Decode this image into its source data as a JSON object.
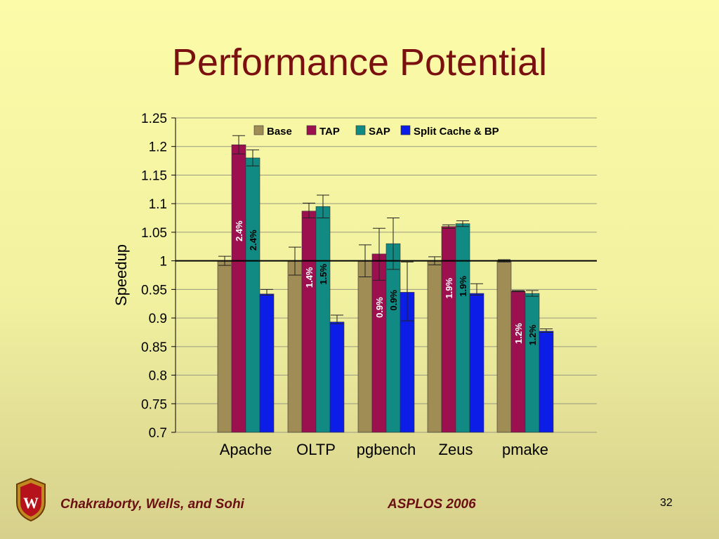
{
  "slide": {
    "title": "Performance Potential",
    "footer_authors": "Chakraborty, Wells, and Sohi",
    "footer_conference": "ASPLOS 2006",
    "page_number": "32"
  },
  "colors": {
    "title": "#7a1010",
    "base": "#a08d55",
    "tap": "#9c1050",
    "sap": "#118a83",
    "split": "#0b1de6"
  },
  "chart_data": {
    "type": "bar",
    "ylabel": "Speedup",
    "xlabel": "",
    "ylim": [
      0.7,
      1.25
    ],
    "yticks": [
      "0.7",
      "0.75",
      "0.8",
      "0.85",
      "0.9",
      "0.95",
      "1",
      "1.05",
      "1.1",
      "1.15",
      "1.2",
      "1.25"
    ],
    "grid": true,
    "legend_position": "top",
    "reference_line": 1,
    "categories": [
      "Apache",
      "OLTP",
      "pgbench",
      "Zeus",
      "pmake"
    ],
    "series": [
      {
        "name": "Base",
        "color": "#a08d55",
        "values": [
          1.0,
          1.0,
          1.0,
          1.0,
          1.0
        ],
        "error_low": [
          0.992,
          0.975,
          0.972,
          0.993,
          0.998
        ],
        "error_high": [
          1.008,
          1.024,
          1.028,
          1.007,
          1.002
        ]
      },
      {
        "name": "TAP",
        "color": "#9c1050",
        "values": [
          1.203,
          1.087,
          1.012,
          1.06,
          0.947
        ],
        "error_low": [
          1.187,
          1.075,
          0.966,
          1.057,
          0.946
        ],
        "error_high": [
          1.219,
          1.101,
          1.057,
          1.063,
          0.948
        ]
      },
      {
        "name": "SAP",
        "color": "#118a83",
        "values": [
          1.18,
          1.095,
          1.03,
          1.065,
          0.943
        ],
        "error_low": [
          1.166,
          1.075,
          0.985,
          1.06,
          0.938
        ],
        "error_high": [
          1.194,
          1.115,
          1.075,
          1.07,
          0.948
        ]
      },
      {
        "name": "Split Cache & BP",
        "color": "#0b1de6",
        "values": [
          0.942,
          0.893,
          0.945,
          0.943,
          0.877
        ],
        "error_low": [
          0.94,
          0.89,
          0.895,
          0.94,
          0.875
        ],
        "error_high": [
          0.95,
          0.905,
          0.998,
          0.96,
          0.881
        ]
      }
    ],
    "annotations": [
      {
        "category": "Apache",
        "series": "TAP",
        "text": "2.4%"
      },
      {
        "category": "Apache",
        "series": "SAP",
        "text": "2.4%"
      },
      {
        "category": "OLTP",
        "series": "TAP",
        "text": "1.4%"
      },
      {
        "category": "OLTP",
        "series": "SAP",
        "text": "1.5%"
      },
      {
        "category": "pgbench",
        "series": "TAP",
        "text": "0.9%"
      },
      {
        "category": "pgbench",
        "series": "SAP",
        "text": "0.9%"
      },
      {
        "category": "Zeus",
        "series": "TAP",
        "text": "1.9%"
      },
      {
        "category": "Zeus",
        "series": "SAP",
        "text": "1.9%"
      },
      {
        "category": "pmake",
        "series": "TAP",
        "text": "1.2%"
      },
      {
        "category": "pmake",
        "series": "SAP",
        "text": "1.2%"
      }
    ]
  }
}
